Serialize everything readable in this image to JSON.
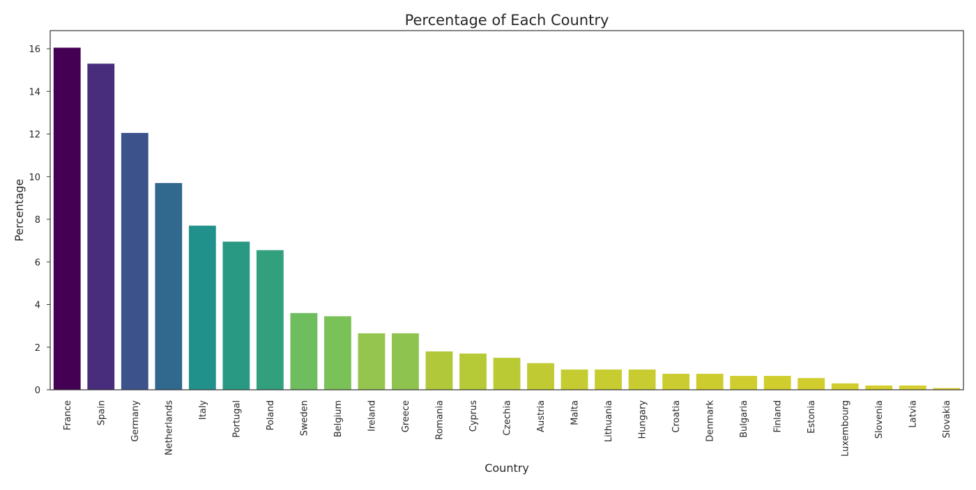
{
  "chart_data": {
    "type": "bar",
    "title": "Percentage of Each Country",
    "xlabel": "Country",
    "ylabel": "Percentage",
    "ylim": [
      0,
      16.85
    ],
    "yticks": [
      "0",
      "2",
      "4",
      "6",
      "8",
      "10",
      "12",
      "14",
      "16"
    ],
    "grid": false,
    "legend": "none",
    "categories": [
      "France",
      "Spain",
      "Germany",
      "Netherlands",
      "Italy",
      "Portugal",
      "Poland",
      "Sweden",
      "Belgium",
      "Ireland",
      "Greece",
      "Romania",
      "Cyprus",
      "Czechia",
      "Austria",
      "Malta",
      "Lithuania",
      "Hungary",
      "Croatia",
      "Denmark",
      "Bulgaria",
      "Finland",
      "Estonia",
      "Luxembourg",
      "Slovenia",
      "Latvia",
      "Slovakia"
    ],
    "values": [
      16.05,
      15.3,
      12.05,
      9.7,
      7.7,
      6.95,
      6.55,
      3.6,
      3.45,
      2.65,
      2.65,
      1.8,
      1.7,
      1.5,
      1.25,
      0.95,
      0.95,
      0.95,
      0.75,
      0.75,
      0.65,
      0.65,
      0.55,
      0.3,
      0.2,
      0.2,
      0.08
    ],
    "colors": [
      "#440154",
      "#472d7b",
      "#3b528b",
      "#31688e",
      "#21918c",
      "#2a9984",
      "#32a07d",
      "#6ebd5e",
      "#7ac258",
      "#95c54f",
      "#8ec34f",
      "#b0c83a",
      "#b6ca37",
      "#b9ca35",
      "#c0cb33",
      "#c5cc31",
      "#c7cc31",
      "#c9cc30",
      "#cbcc2f",
      "#cdcc2f",
      "#cfcd2f",
      "#d0cd2e",
      "#d1cd2e",
      "#d2cd2e",
      "#d3cd2e",
      "#d4cd2e",
      "#d5cd2e"
    ]
  }
}
